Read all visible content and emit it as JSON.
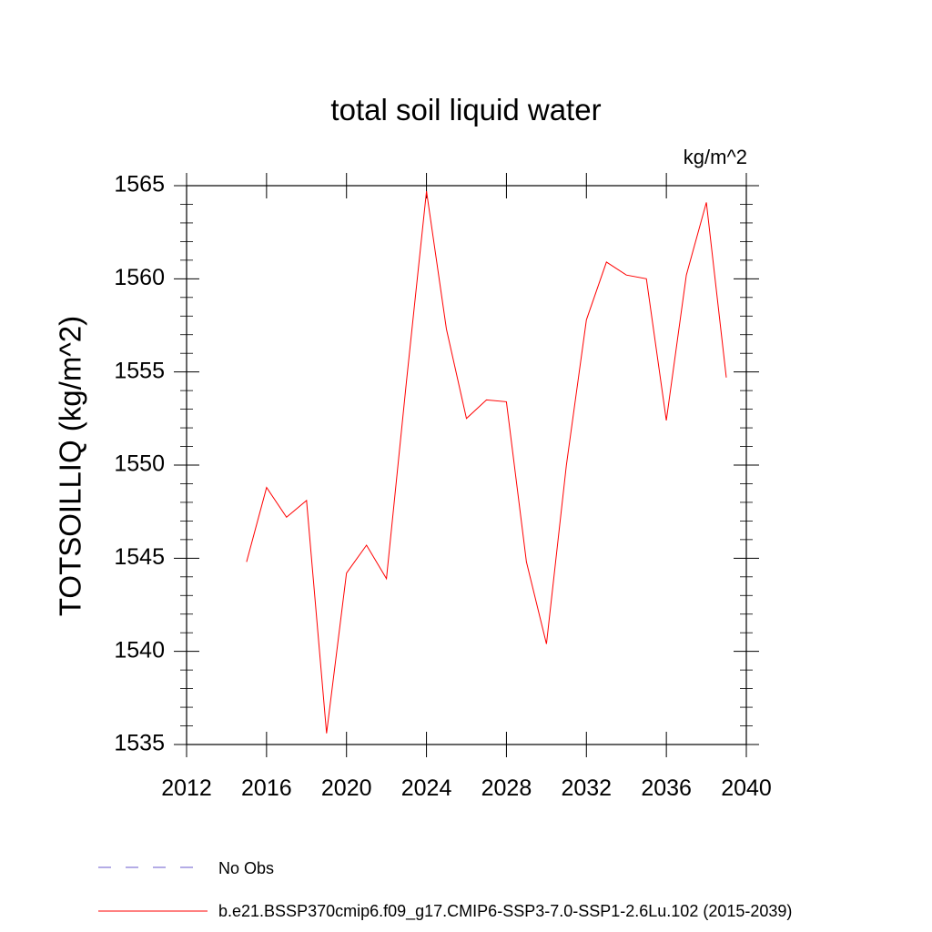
{
  "chart_data": {
    "type": "line",
    "title": "total soil liquid water",
    "units_label": "kg/m^2",
    "ylabel": "TOTSOILLIQ  (kg/m^2)",
    "xlabel": "",
    "xlim": [
      2012,
      2040
    ],
    "ylim": [
      1535,
      1565
    ],
    "x_ticks": [
      2012,
      2016,
      2020,
      2024,
      2028,
      2032,
      2036,
      2040
    ],
    "y_ticks": [
      1535,
      1540,
      1545,
      1550,
      1555,
      1560,
      1565
    ],
    "grid": false,
    "legend_position": "bottom",
    "series": [
      {
        "name": "b.e21.BSSP370cmip6.f09_g17.CMIP6-SSP3-7.0-SSP1-2.6Lu.102 (2015-2039)",
        "color": "#ff0000",
        "style": "solid",
        "x": [
          2015,
          2016,
          2017,
          2018,
          2019,
          2020,
          2021,
          2022,
          2023,
          2024,
          2025,
          2026,
          2027,
          2028,
          2029,
          2030,
          2031,
          2032,
          2033,
          2034,
          2035,
          2036,
          2037,
          2038,
          2039
        ],
        "y": [
          1544.8,
          1548.8,
          1547.2,
          1548.1,
          1535.6,
          1544.2,
          1545.7,
          1543.9,
          1554.5,
          1564.7,
          1557.3,
          1552.5,
          1553.5,
          1553.4,
          1544.8,
          1540.4,
          1550.0,
          1557.8,
          1560.9,
          1560.2,
          1560.0,
          1552.4,
          1560.2,
          1564.1,
          1554.7
        ]
      }
    ],
    "legend": [
      {
        "label": "No Obs",
        "color": "#6a5acd",
        "style": "dashed"
      },
      {
        "label": "b.e21.BSSP370cmip6.f09_g17.CMIP6-SSP3-7.0-SSP1-2.6Lu.102 (2015-2039)",
        "color": "#ff0000",
        "style": "solid"
      }
    ]
  }
}
